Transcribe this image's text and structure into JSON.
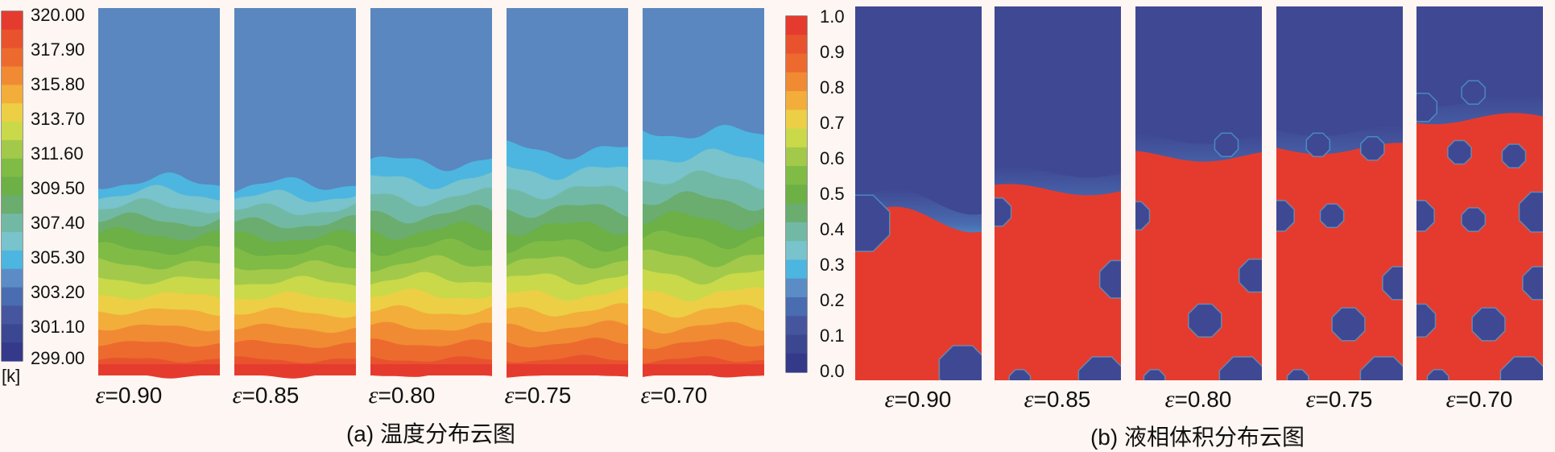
{
  "temperature": {
    "caption": "(a) 温度分布云图",
    "unit": "[k]",
    "ticks": [
      "320.00",
      "317.90",
      "315.80",
      "313.70",
      "311.60",
      "309.50",
      "307.40",
      "305.30",
      "303.20",
      "301.10",
      "299.00"
    ],
    "panels": [
      {
        "label": "=0.90"
      },
      {
        "label": "=0.85"
      },
      {
        "label": "=0.80"
      },
      {
        "label": "=0.75"
      },
      {
        "label": "=0.70"
      }
    ]
  },
  "liquid": {
    "caption": "(b) 液相体积分布云图",
    "ticks": [
      "1.0",
      "0.9",
      "0.8",
      "0.7",
      "0.6",
      "0.5",
      "0.4",
      "0.3",
      "0.2",
      "0.1",
      "0.0"
    ],
    "panels": [
      {
        "label": "=0.90"
      },
      {
        "label": "=0.85"
      },
      {
        "label": "=0.80"
      },
      {
        "label": "=0.75"
      },
      {
        "label": "=0.70"
      }
    ]
  },
  "epsilon_symbol": "ε",
  "colors": {
    "band_colors_top_to_bottom": [
      "#e53b2e",
      "#e8532e",
      "#ed6a2f",
      "#f08b33",
      "#f3ad3a",
      "#eccf45",
      "#c9d94a",
      "#a2c94a",
      "#80bb45",
      "#6cb046",
      "#6aad6f",
      "#72b9a5",
      "#78c3cc",
      "#4cb6e0",
      "#5b8cc5",
      "#4a6cb0",
      "#46569e",
      "#3c4792",
      "#34398a"
    ],
    "cold_blue": "#5a87bf",
    "liquid_red": "#e53b2e",
    "solid_navy": "#3f4893"
  }
}
